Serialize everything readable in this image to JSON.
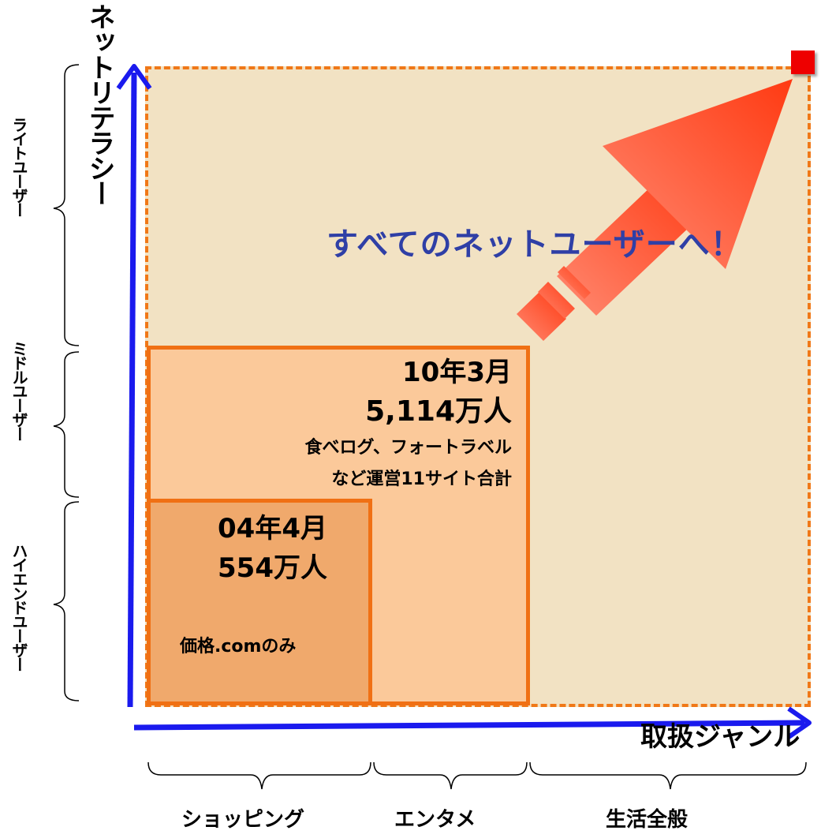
{
  "axes": {
    "y_title": "ネットリテラシー",
    "x_title": "取扱ジャンル"
  },
  "y_segments": [
    "ライトユーザー",
    "ミドルユーザー",
    "ハイエンドユーザー"
  ],
  "x_segments": [
    "ショッピング",
    "エンタメ",
    "生活全般"
  ],
  "headline": "すべてのネットユーザーへ！",
  "stages": {
    "mid": {
      "date": "10年3月",
      "users": "5,114万人",
      "note_line1": "食べログ、フォートラベル",
      "note_line2": "など運営11サイト合計"
    },
    "inner": {
      "date": "04年4月",
      "users": "554万人",
      "note": "価格.comのみ"
    }
  },
  "colors": {
    "axis": "#1a1aee",
    "outer_fill": "#f2e2c3",
    "mid_fill": "#fbc99a",
    "inner_fill": "#f0a96c",
    "border": "#f07014",
    "arrow": "#ff4f2a",
    "headline": "#2f3fa6",
    "marker": "#ee0000"
  }
}
